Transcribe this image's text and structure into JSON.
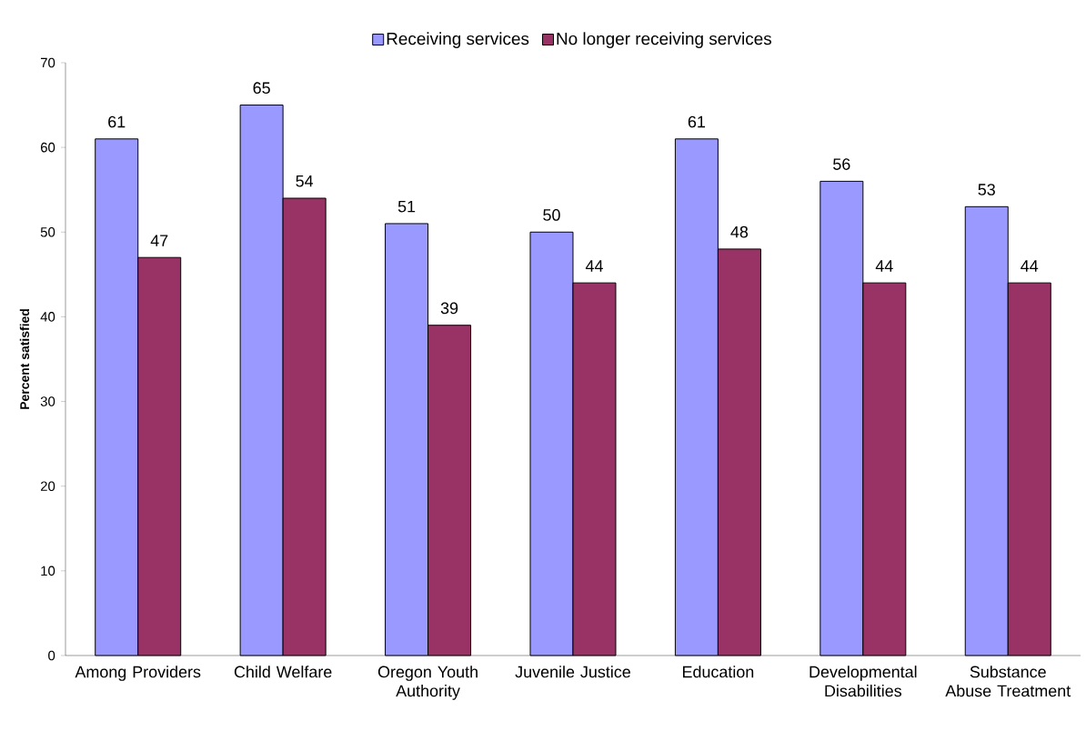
{
  "chart_data": {
    "type": "bar",
    "ylabel": "Percent satisfied",
    "categories": [
      "Among Providers",
      "Child Welfare",
      "Oregon Youth Authority",
      "Juvenile Justice",
      "Education",
      "Developmental Disabilities",
      "Substance Abuse Treatment"
    ],
    "series": [
      {
        "name": "Receiving services",
        "color": "#9999ff",
        "values": [
          61,
          65,
          51,
          50,
          61,
          56,
          53
        ]
      },
      {
        "name": "No longer receiving services",
        "color": "#993366",
        "values": [
          47,
          54,
          39,
          44,
          48,
          44,
          44
        ]
      }
    ],
    "ylim": [
      0,
      70
    ],
    "yticks": [
      0,
      10,
      20,
      30,
      40,
      50,
      60,
      70
    ],
    "data_labels": true,
    "legend": "top",
    "grid": false
  }
}
